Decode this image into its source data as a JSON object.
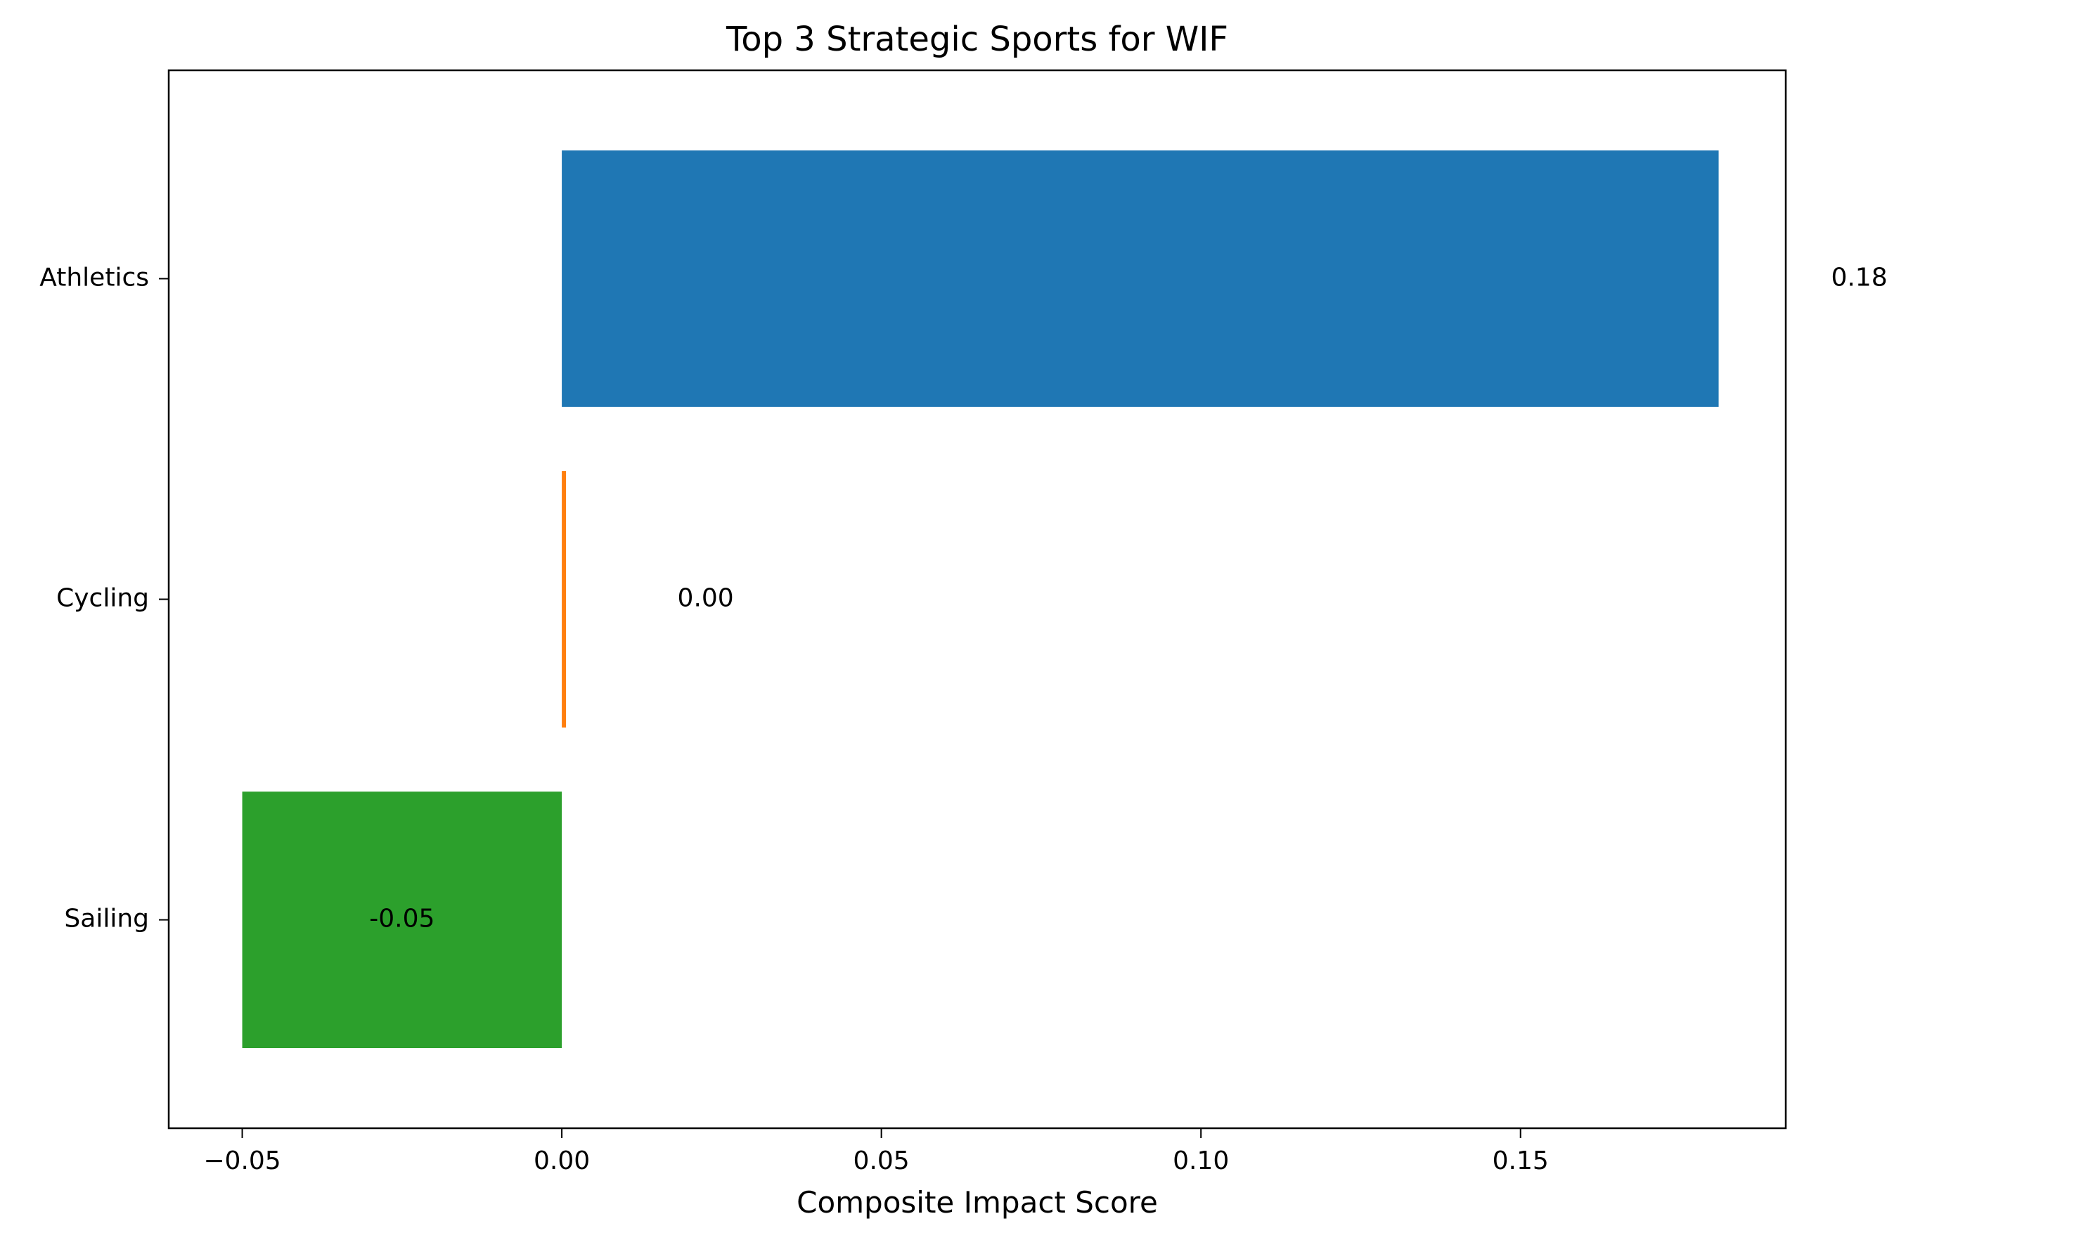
{
  "chart_data": {
    "type": "bar",
    "orientation": "horizontal",
    "title": "Top 3 Strategic Sports for WIF",
    "xlabel": "Composite Impact Score",
    "ylabel": "",
    "categories": [
      "Athletics",
      "Cycling",
      "Sailing"
    ],
    "values": [
      0.181,
      0.0005,
      -0.05
    ],
    "value_labels": [
      "0.18",
      "0.00",
      "-0.05"
    ],
    "colors": [
      "#1f77b4",
      "#ff7f0e",
      "#2ca02c"
    ],
    "xlim": [
      -0.0615,
      0.1915
    ],
    "xticks": [
      -0.05,
      0.0,
      0.05,
      0.1,
      0.15
    ],
    "xtick_labels": [
      "−0.05",
      "0.00",
      "0.05",
      "0.10",
      "0.15"
    ],
    "grid": false,
    "legend": "none"
  }
}
